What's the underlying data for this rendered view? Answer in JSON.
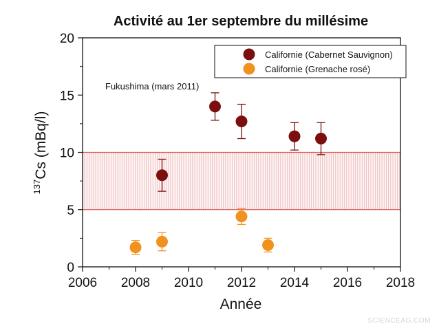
{
  "chart_data": {
    "type": "scatter",
    "title": "Activité au 1er septembre du millésime",
    "xlabel": "Année",
    "ylabel_sup": "137",
    "ylabel_main": "Cs (mBq/l)",
    "xlim": [
      2006,
      2018
    ],
    "ylim": [
      0,
      20
    ],
    "x_ticks": [
      2006,
      2008,
      2010,
      2012,
      2014,
      2016,
      2018
    ],
    "y_ticks": [
      0,
      5,
      10,
      15,
      20
    ],
    "legend_position": "top-right",
    "grid": false,
    "band": {
      "y0": 5,
      "y1": 10,
      "color": "#e8a0a0"
    },
    "annotation": "Fukushima (mars 2011)",
    "series": [
      {
        "name": "Californie (Cabernet Sauvignon)",
        "color": "#7b0e0e",
        "points": [
          {
            "x": 2009,
            "y": 8.0,
            "err_low": 6.6,
            "err_high": 9.4
          },
          {
            "x": 2011,
            "y": 14.0,
            "err_low": 12.8,
            "err_high": 15.2
          },
          {
            "x": 2012,
            "y": 12.7,
            "err_low": 11.2,
            "err_high": 14.2
          },
          {
            "x": 2014,
            "y": 11.4,
            "err_low": 10.2,
            "err_high": 12.6
          },
          {
            "x": 2015,
            "y": 11.2,
            "err_low": 9.8,
            "err_high": 12.6
          }
        ]
      },
      {
        "name": "Californie (Grenache rosé)",
        "color": "#f0921e",
        "points": [
          {
            "x": 2008,
            "y": 1.7,
            "err_low": 1.1,
            "err_high": 2.3
          },
          {
            "x": 2009,
            "y": 2.2,
            "err_low": 1.4,
            "err_high": 3.0
          },
          {
            "x": 2012,
            "y": 4.4,
            "err_low": 3.7,
            "err_high": 5.1
          },
          {
            "x": 2013,
            "y": 1.9,
            "err_low": 1.3,
            "err_high": 2.5
          }
        ]
      }
    ]
  },
  "watermark": "SCIENCEAG.COM"
}
